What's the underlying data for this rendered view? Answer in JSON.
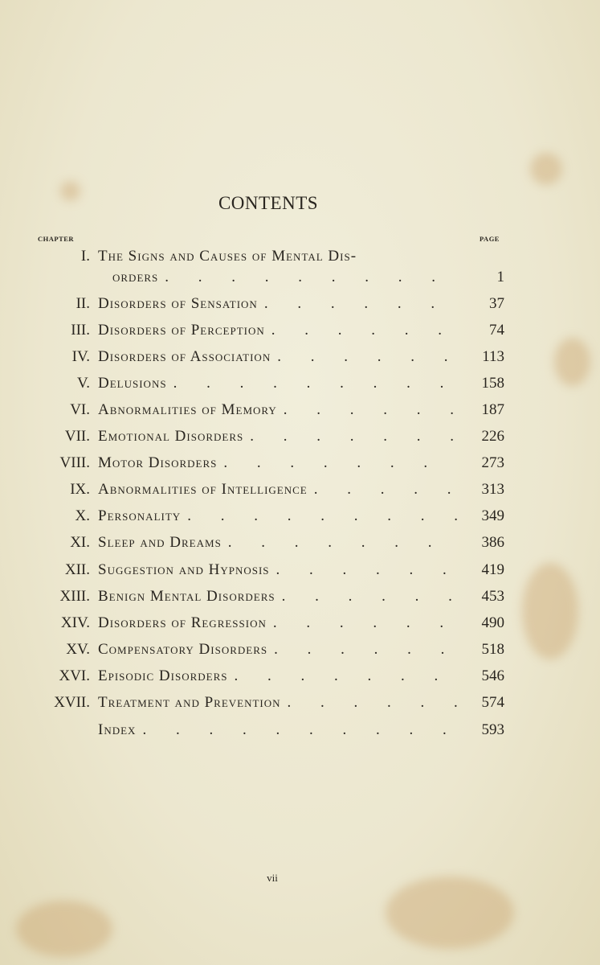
{
  "title": "CONTENTS",
  "column_headers": {
    "chapter": "CHAPTER",
    "page": "PAGE"
  },
  "entries": [
    {
      "numeral": "I.",
      "title": "The Signs and Causes of Mental Dis-",
      "title_cont": "orders",
      "page": "1"
    },
    {
      "numeral": "II.",
      "title": "Disorders of Sensation",
      "page": "37"
    },
    {
      "numeral": "III.",
      "title": "Disorders of Perception",
      "page": "74"
    },
    {
      "numeral": "IV.",
      "title": "Disorders of Association",
      "page": "113"
    },
    {
      "numeral": "V.",
      "title": "Delusions",
      "page": "158"
    },
    {
      "numeral": "VI.",
      "title": "Abnormalities of Memory",
      "page": "187"
    },
    {
      "numeral": "VII.",
      "title": "Emotional Disorders",
      "page": "226"
    },
    {
      "numeral": "VIII.",
      "title": "Motor Disorders",
      "page": "273"
    },
    {
      "numeral": "IX.",
      "title": "Abnormalities of Intelligence",
      "page": "313"
    },
    {
      "numeral": "X.",
      "title": "Personality",
      "page": "349"
    },
    {
      "numeral": "XI.",
      "title": "Sleep and Dreams",
      "page": "386"
    },
    {
      "numeral": "XII.",
      "title": "Suggestion and Hypnosis",
      "page": "419"
    },
    {
      "numeral": "XIII.",
      "title": "Benign Mental Disorders",
      "page": "453"
    },
    {
      "numeral": "XIV.",
      "title": "Disorders of Regression",
      "page": "490"
    },
    {
      "numeral": "XV.",
      "title": "Compensatory Disorders",
      "page": "518"
    },
    {
      "numeral": "XVI.",
      "title": "Episodic Disorders",
      "page": "546"
    },
    {
      "numeral": "XVII.",
      "title": "Treatment and Prevention",
      "page": "574"
    },
    {
      "numeral": "",
      "title": "Index",
      "page": "593"
    }
  ],
  "folio": "vii"
}
